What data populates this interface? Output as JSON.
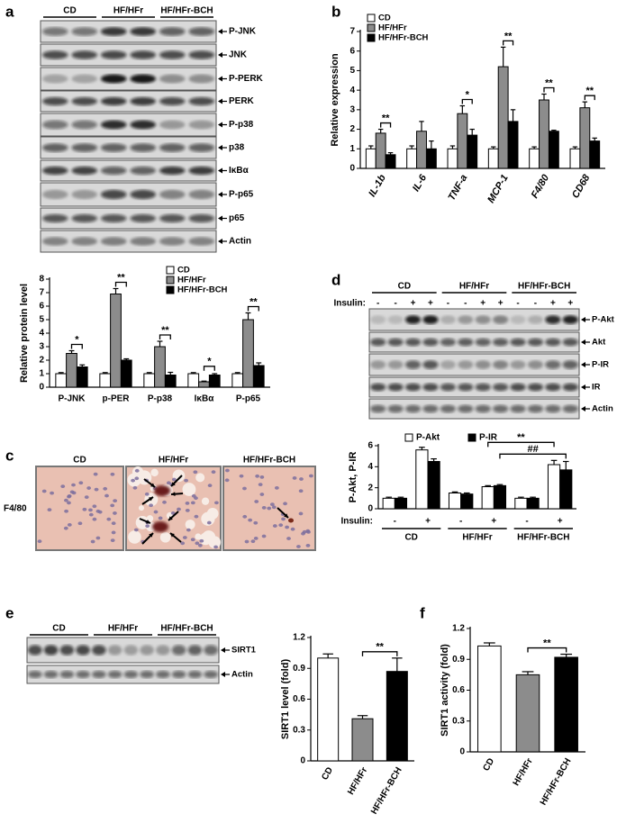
{
  "panel_labels": [
    "a",
    "b",
    "c",
    "d",
    "e",
    "f"
  ],
  "blot_a": {
    "groups": [
      "CD",
      "HF/HFr",
      "HF/HFr-BCH"
    ],
    "bands": [
      "P-JNK",
      "JNK",
      "P-PERK",
      "PERK",
      "P-p38",
      "p38",
      "IκBα",
      "P-p65",
      "p65",
      "Actin"
    ]
  },
  "histology": {
    "groups": [
      "CD",
      "HF/HFr",
      "HF/HFr-BCH"
    ],
    "stain": "F4/80"
  },
  "blot_d": {
    "groups": [
      "CD",
      "HF/HFr",
      "HF/HFr-BCH"
    ],
    "insulin_label": "Insulin:",
    "insulin": [
      "-",
      "-",
      "+",
      "+",
      "-",
      "-",
      "+",
      "+",
      "-",
      "-",
      "+",
      "+"
    ],
    "bands": [
      "P-Akt",
      "Akt",
      "P-IR",
      "IR",
      "Actin"
    ]
  },
  "blot_e": {
    "groups": [
      "CD",
      "HF/HFr",
      "HF/HFr-BCH"
    ],
    "bands": [
      "SIRT1",
      "Actin"
    ]
  },
  "chart_data": [
    {
      "type": "bar",
      "ylabel": "Relative protein level",
      "categories": [
        "P-JNK",
        "p-PER",
        "P-p38",
        "IκBα",
        "P-p65"
      ],
      "series": [
        {
          "name": "CD",
          "color": "#ffffff",
          "values": [
            1,
            1,
            1,
            1,
            1
          ],
          "errors": [
            0.08,
            0.08,
            0.08,
            0.08,
            0.08
          ]
        },
        {
          "name": "HF/HFr",
          "color": "#8c8c8c",
          "values": [
            2.5,
            6.9,
            3.0,
            0.4,
            5.0
          ],
          "errors": [
            0.2,
            0.4,
            0.4,
            0.05,
            0.5
          ]
        },
        {
          "name": "HF/HFr-BCH",
          "color": "#000000",
          "values": [
            1.5,
            2.0,
            0.9,
            0.9,
            1.6
          ],
          "errors": [
            0.15,
            0.1,
            0.2,
            0.1,
            0.2
          ]
        }
      ],
      "ylim": [
        0,
        8
      ],
      "yticks": [
        0,
        1,
        2,
        3,
        4,
        5,
        6,
        7,
        8
      ],
      "legend": "top-right",
      "annotations": [
        {
          "text": "*",
          "from": [
            0,
            1
          ],
          "to": [
            0,
            2
          ]
        },
        {
          "text": "**",
          "from": [
            1,
            1
          ],
          "to": [
            1,
            2
          ]
        },
        {
          "text": "**",
          "from": [
            2,
            1
          ],
          "to": [
            2,
            2
          ]
        },
        {
          "text": "*",
          "from": [
            3,
            1
          ],
          "to": [
            3,
            2
          ]
        },
        {
          "text": "**",
          "from": [
            4,
            1
          ],
          "to": [
            4,
            2
          ]
        }
      ]
    },
    {
      "type": "bar",
      "ylabel": "Relative expression",
      "categories": [
        "IL-1b",
        "IL-6",
        "TNF-a",
        "MCP-1",
        "F4/80",
        "CD68"
      ],
      "series": [
        {
          "name": "CD",
          "color": "#ffffff",
          "values": [
            1.0,
            1.0,
            1.0,
            1.0,
            1.0,
            1.0
          ],
          "errors": [
            0.15,
            0.15,
            0.15,
            0.1,
            0.1,
            0.1
          ]
        },
        {
          "name": "HF/HFr",
          "color": "#8c8c8c",
          "values": [
            1.8,
            1.9,
            2.8,
            5.2,
            3.5,
            3.1
          ],
          "errors": [
            0.2,
            0.5,
            0.4,
            1.0,
            0.3,
            0.3
          ]
        },
        {
          "name": "HF/HFr-BCH",
          "color": "#000000",
          "values": [
            0.7,
            1.0,
            1.7,
            2.4,
            1.9,
            1.4
          ],
          "errors": [
            0.1,
            0.4,
            0.3,
            0.6,
            0.05,
            0.15
          ]
        }
      ],
      "ylim": [
        0,
        7
      ],
      "yticks": [
        0,
        1,
        2,
        3,
        4,
        5,
        6,
        7
      ],
      "legend": "top-left",
      "annotations": [
        {
          "text": "**",
          "from": [
            0,
            1
          ],
          "to": [
            0,
            2
          ]
        },
        {
          "text": "*",
          "from": [
            2,
            1
          ],
          "to": [
            2,
            2
          ]
        },
        {
          "text": "**",
          "from": [
            3,
            1
          ],
          "to": [
            3,
            2
          ]
        },
        {
          "text": "**",
          "from": [
            4,
            1
          ],
          "to": [
            4,
            2
          ]
        },
        {
          "text": "**",
          "from": [
            5,
            1
          ],
          "to": [
            5,
            2
          ]
        }
      ]
    },
    {
      "type": "bar",
      "ylabel": "P-Akt, P-IR",
      "insulin_label": "Insulin:",
      "groups": [
        "CD",
        "HF/HFr",
        "HF/HFr-BCH"
      ],
      "categories": [
        "-",
        "+",
        "-",
        "+",
        "-",
        "+"
      ],
      "series": [
        {
          "name": "P-Akt",
          "color": "#ffffff",
          "values": [
            1.0,
            5.6,
            1.5,
            2.1,
            1.0,
            4.2
          ],
          "errors": [
            0.1,
            0.25,
            0.1,
            0.1,
            0.1,
            0.4
          ]
        },
        {
          "name": "P-IR",
          "color": "#000000",
          "values": [
            1.0,
            4.5,
            1.4,
            2.2,
            1.0,
            3.7
          ],
          "errors": [
            0.1,
            0.25,
            0.1,
            0.1,
            0.1,
            0.8
          ]
        }
      ],
      "ylim": [
        0,
        6
      ],
      "yticks": [
        0,
        2,
        4,
        6
      ],
      "legend": "top",
      "annotations": [
        {
          "text": "**",
          "from": [
            3,
            0
          ],
          "to": [
            5,
            0
          ]
        },
        {
          "text": "##",
          "from": [
            3,
            1
          ],
          "to": [
            5,
            1
          ]
        }
      ]
    },
    {
      "type": "bar",
      "ylabel": "SIRT1 level (fold)",
      "categories": [
        "CD",
        "HF/HFr",
        "HF/HFr-BCH"
      ],
      "values": [
        1.0,
        0.41,
        0.87
      ],
      "errors": [
        0.04,
        0.03,
        0.13
      ],
      "colors": [
        "#ffffff",
        "#8c8c8c",
        "#000000"
      ],
      "ylim": [
        0,
        1.2
      ],
      "yticks": [
        0,
        0.3,
        0.6,
        0.9,
        1.2
      ],
      "annotations": [
        {
          "text": "**",
          "from": [
            1,
            0
          ],
          "to": [
            2,
            0
          ]
        }
      ]
    },
    {
      "type": "bar",
      "ylabel": "SIRT1 activity (fold)",
      "categories": [
        "CD",
        "HF/HFr",
        "HF/HFr-BCH"
      ],
      "values": [
        1.03,
        0.75,
        0.92
      ],
      "errors": [
        0.03,
        0.03,
        0.03
      ],
      "colors": [
        "#ffffff",
        "#8c8c8c",
        "#000000"
      ],
      "ylim": [
        0,
        1.2
      ],
      "yticks": [
        0,
        0.3,
        0.6,
        0.9,
        1.2
      ],
      "annotations": [
        {
          "text": "**",
          "from": [
            1,
            0
          ],
          "to": [
            2,
            0
          ]
        }
      ]
    }
  ]
}
